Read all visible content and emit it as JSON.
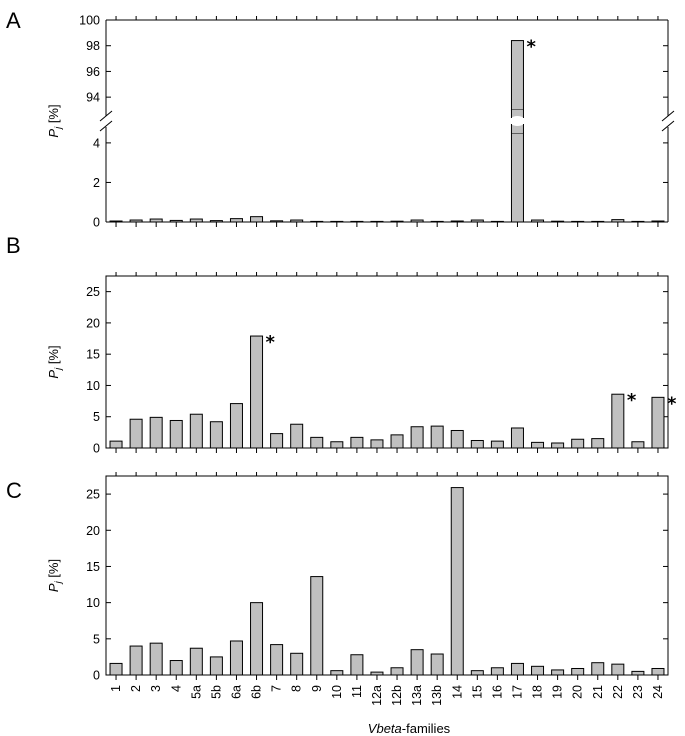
{
  "figure": {
    "xlabel_italic": "Vbeta",
    "xlabel_rest": "-families",
    "bar_fill": "#c0c0c0",
    "bar_stroke": "#000000"
  },
  "chart_data": [
    {
      "type": "bar",
      "panel_label": "A",
      "ylabel_italic": "P",
      "ylabel_sub": "j",
      "ylabel_rest": " [%]",
      "broken_axis": true,
      "ylim_lower": [
        0,
        4.5
      ],
      "ylim_upper": [
        93,
        100
      ],
      "yticks_lower": [
        "0",
        "2",
        "4"
      ],
      "yticks_upper": [
        "94",
        "96",
        "98",
        "100"
      ],
      "categories": [
        "1",
        "2",
        "3",
        "4",
        "5a",
        "5b",
        "6a",
        "6b",
        "7",
        "8",
        "9",
        "10",
        "11",
        "12a",
        "12b",
        "13a",
        "13b",
        "14",
        "15",
        "16",
        "17",
        "18",
        "19",
        "20",
        "21",
        "22",
        "23",
        "24"
      ],
      "values": [
        0.05,
        0.1,
        0.15,
        0.08,
        0.15,
        0.07,
        0.17,
        0.27,
        0.06,
        0.1,
        0,
        0,
        0,
        0,
        0.04,
        0.1,
        0,
        0.05,
        0.1,
        0,
        98.4,
        0.1,
        0.04,
        0,
        0,
        0.12,
        0,
        0.05
      ],
      "marked": [
        "17"
      ],
      "marker": "*"
    },
    {
      "type": "bar",
      "panel_label": "B",
      "ylabel_italic": "P",
      "ylabel_sub": "j",
      "ylabel_rest": " [%]",
      "ylim": [
        0,
        27.5
      ],
      "yticks": [
        "0",
        "5",
        "10",
        "15",
        "20",
        "25"
      ],
      "categories": [
        "1",
        "2",
        "3",
        "4",
        "5a",
        "5b",
        "6a",
        "6b",
        "7",
        "8",
        "9",
        "10",
        "11",
        "12a",
        "12b",
        "13a",
        "13b",
        "14",
        "15",
        "16",
        "17",
        "18",
        "19",
        "20",
        "21",
        "22",
        "23",
        "24"
      ],
      "values": [
        1.1,
        4.6,
        4.9,
        4.4,
        5.4,
        4.2,
        7.1,
        17.9,
        2.3,
        3.8,
        1.7,
        1.0,
        1.7,
        1.3,
        2.1,
        3.4,
        3.5,
        2.8,
        1.2,
        1.1,
        3.2,
        0.9,
        0.8,
        1.4,
        1.5,
        8.6,
        1.0,
        8.1
      ],
      "marked": [
        "6b",
        "22",
        "24"
      ],
      "marker": "*"
    },
    {
      "type": "bar",
      "panel_label": "C",
      "ylabel_italic": "P",
      "ylabel_sub": "j",
      "ylabel_rest": " [%]",
      "ylim": [
        0,
        27.5
      ],
      "yticks": [
        "0",
        "5",
        "10",
        "15",
        "20",
        "25"
      ],
      "categories": [
        "1",
        "2",
        "3",
        "4",
        "5a",
        "5b",
        "6a",
        "6b",
        "7",
        "8",
        "9",
        "10",
        "11",
        "12a",
        "12b",
        "13a",
        "13b",
        "14",
        "15",
        "16",
        "17",
        "18",
        "19",
        "20",
        "21",
        "22",
        "23",
        "24"
      ],
      "values": [
        1.6,
        4.0,
        4.4,
        2.0,
        3.7,
        2.5,
        4.7,
        10.0,
        4.2,
        3.0,
        13.6,
        0.6,
        2.8,
        0.4,
        1.0,
        3.5,
        2.9,
        25.9,
        0.6,
        1.0,
        1.6,
        1.2,
        0.7,
        0.9,
        1.7,
        1.5,
        0.5,
        0.9
      ],
      "marked": [],
      "marker": "*"
    }
  ]
}
